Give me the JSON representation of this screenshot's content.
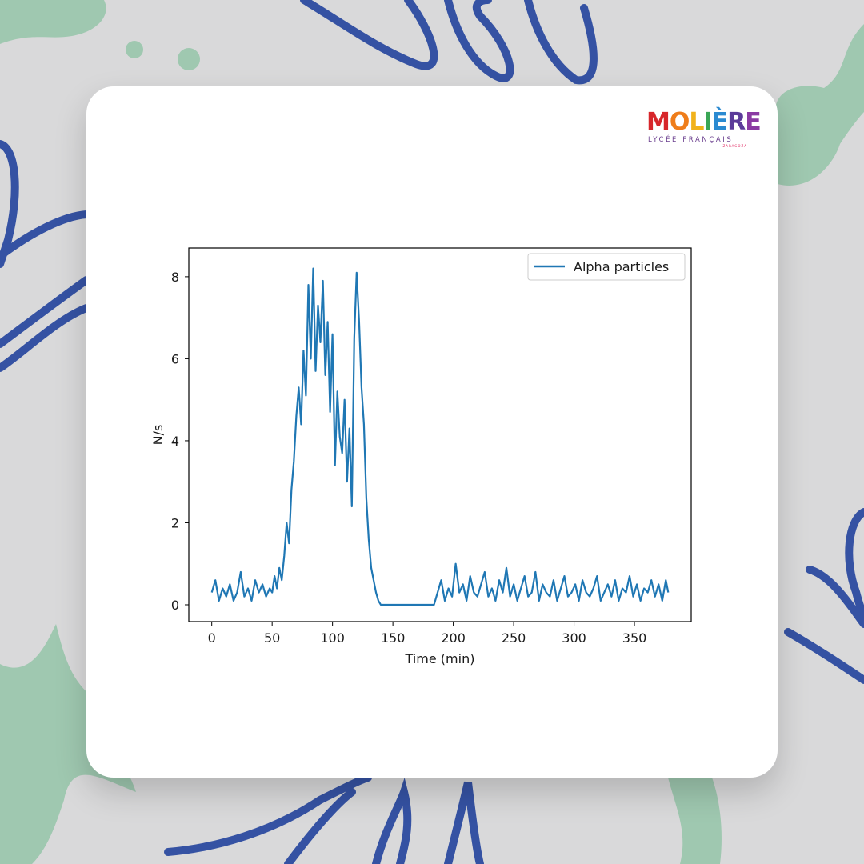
{
  "logo": {
    "word": [
      "M",
      "O",
      "L",
      "I",
      "È",
      "R",
      "E"
    ],
    "word_colors": [
      "#d7262b",
      "#ef7d1a",
      "#f1b21a",
      "#3aa655",
      "#2b8ad1",
      "#5b3b9a",
      "#8a3aa3"
    ],
    "subtitle": "LYCÉE FRANÇAIS",
    "city": "ZARAGOZA"
  },
  "colors": {
    "background": "#d9d9da",
    "blue_scribble": "#3552a3",
    "green_leaf": "#9fc8b0",
    "card": "#ffffff",
    "series": "#1f77b4"
  },
  "chart_data": {
    "type": "line",
    "title": "",
    "xlabel": "Time (min)",
    "ylabel": "N/s",
    "xlim": [
      -19,
      397
    ],
    "ylim": [
      -0.41,
      8.7
    ],
    "xticks": [
      0,
      50,
      100,
      150,
      200,
      250,
      300,
      350
    ],
    "yticks": [
      0,
      2,
      4,
      6,
      8
    ],
    "grid": false,
    "legend_position": "top-right",
    "series": [
      {
        "name": "Alpha particles",
        "color": "#1f77b4",
        "x": [
          0,
          3,
          6,
          9,
          12,
          15,
          18,
          21,
          24,
          27,
          30,
          33,
          36,
          39,
          42,
          45,
          48,
          50,
          52,
          54,
          56,
          58,
          60,
          62,
          64,
          66,
          68,
          70,
          72,
          74,
          76,
          78,
          80,
          82,
          84,
          86,
          88,
          90,
          92,
          94,
          96,
          98,
          100,
          102,
          104,
          106,
          108,
          110,
          112,
          114,
          116,
          118,
          120,
          122,
          124,
          126,
          128,
          130,
          132,
          134,
          136,
          138,
          140,
          184,
          187,
          190,
          193,
          196,
          199,
          202,
          205,
          208,
          211,
          214,
          217,
          220,
          223,
          226,
          229,
          232,
          235,
          238,
          241,
          244,
          247,
          250,
          253,
          256,
          259,
          262,
          265,
          268,
          271,
          274,
          277,
          280,
          283,
          286,
          289,
          292,
          295,
          298,
          301,
          304,
          307,
          310,
          313,
          316,
          319,
          322,
          325,
          328,
          331,
          334,
          337,
          340,
          343,
          346,
          349,
          352,
          355,
          358,
          361,
          364,
          367,
          370,
          373,
          376,
          378
        ],
        "y": [
          0.3,
          0.6,
          0.1,
          0.4,
          0.2,
          0.5,
          0.1,
          0.3,
          0.8,
          0.2,
          0.4,
          0.1,
          0.6,
          0.3,
          0.5,
          0.2,
          0.4,
          0.3,
          0.7,
          0.4,
          0.9,
          0.6,
          1.2,
          2.0,
          1.5,
          2.8,
          3.5,
          4.6,
          5.3,
          4.4,
          6.2,
          5.1,
          7.8,
          6.0,
          8.2,
          5.7,
          7.3,
          6.4,
          7.9,
          5.6,
          6.9,
          4.7,
          6.6,
          3.4,
          5.2,
          4.1,
          3.7,
          5.0,
          3.0,
          4.3,
          2.4,
          6.5,
          8.1,
          6.9,
          5.3,
          4.4,
          2.6,
          1.6,
          0.9,
          0.6,
          0.3,
          0.1,
          0.0,
          0.0,
          0.3,
          0.6,
          0.1,
          0.4,
          0.2,
          1.0,
          0.3,
          0.5,
          0.1,
          0.7,
          0.3,
          0.2,
          0.5,
          0.8,
          0.2,
          0.4,
          0.1,
          0.6,
          0.3,
          0.9,
          0.2,
          0.5,
          0.1,
          0.4,
          0.7,
          0.2,
          0.3,
          0.8,
          0.1,
          0.5,
          0.3,
          0.2,
          0.6,
          0.1,
          0.4,
          0.7,
          0.2,
          0.3,
          0.5,
          0.1,
          0.6,
          0.3,
          0.2,
          0.4,
          0.7,
          0.1,
          0.3,
          0.5,
          0.2,
          0.6,
          0.1,
          0.4,
          0.3,
          0.7,
          0.2,
          0.5,
          0.1,
          0.4,
          0.3,
          0.6,
          0.2,
          0.5,
          0.1,
          0.6,
          0.3
        ]
      }
    ]
  }
}
